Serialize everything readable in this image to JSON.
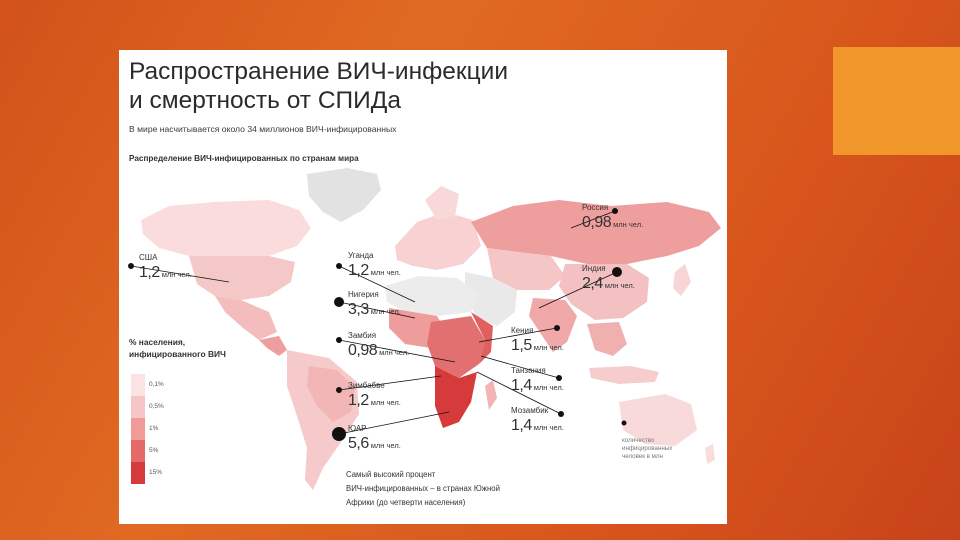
{
  "title": {
    "line1": "Распространение ВИЧ-инфекции",
    "line2": "и смертность от СПИДа"
  },
  "subtitle": "В мире насчитывается около 34 миллионов ВИЧ-инфицированных",
  "map_caption": "Распределение ВИЧ-инфицированных по странам мира",
  "colors": {
    "background": "#d8561c",
    "accent": "#f0962a",
    "dot": "#111111",
    "scale": [
      "#fbe3e3",
      "#f6c6c6",
      "#f09a9a",
      "#e46a6a",
      "#d63a3a"
    ]
  },
  "legend": {
    "title_line1": "% населения,",
    "title_line2": "инфицированного ВИЧ",
    "items": [
      {
        "label": "0,1%",
        "color": "#fbe3e3"
      },
      {
        "label": "0,5%",
        "color": "#f6c6c6"
      },
      {
        "label": "1%",
        "color": "#f09a9a"
      },
      {
        "label": "5%",
        "color": "#e46a6a"
      },
      {
        "label": "15%",
        "color": "#d63a3a"
      }
    ]
  },
  "countries": [
    {
      "name": "США",
      "value": "1,2",
      "unit": "млн чел."
    },
    {
      "name": "Уганда",
      "value": "1,2",
      "unit": "млн чел."
    },
    {
      "name": "Нигерия",
      "value": "3,3",
      "unit": "млн чел."
    },
    {
      "name": "Замбия",
      "value": "0,98",
      "unit": "млн чел."
    },
    {
      "name": "Зимбабве",
      "value": "1,2",
      "unit": "млн чел."
    },
    {
      "name": "ЮАР",
      "value": "5,6",
      "unit": "млн чел."
    },
    {
      "name": "Россия",
      "value": "0,98",
      "unit": "млн чел."
    },
    {
      "name": "Индия",
      "value": "2,4",
      "unit": "млн чел."
    },
    {
      "name": "Кения",
      "value": "1,5",
      "unit": "млн чел."
    },
    {
      "name": "Танзания",
      "value": "1,4",
      "unit": "млн чел."
    },
    {
      "name": "Мозамбик",
      "value": "1,4",
      "unit": "млн чел."
    }
  ],
  "note": {
    "line1": "Самый высокий процент",
    "line2": "ВИЧ-инфицированных – в странах Южной",
    "line3": "Африки (до четверти населения)"
  },
  "dot_legend": {
    "line1": "количество",
    "line2": "инфицированных",
    "line3": "человек в млн"
  }
}
